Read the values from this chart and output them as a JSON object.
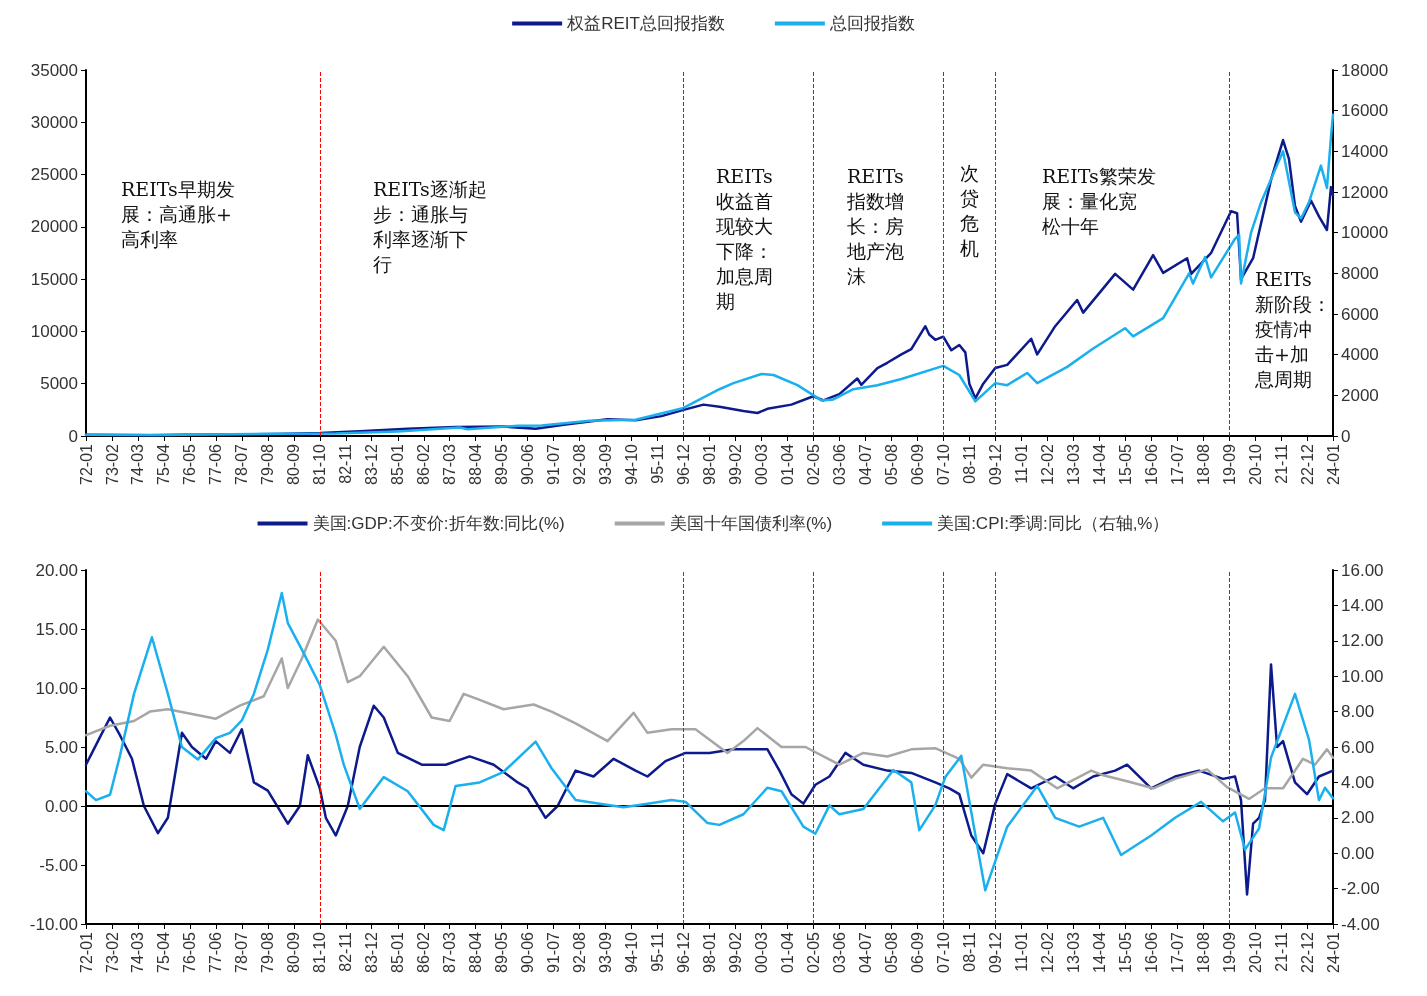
{
  "chart_data": [
    {
      "type": "line",
      "legend": "top",
      "grid": false,
      "marker": "none",
      "line_style": "solid",
      "xlim": [
        "1972-01",
        "2024-01"
      ],
      "xticks": [
        {
          "value": "1972-01",
          "label": "72-01"
        },
        {
          "value": "1973-02",
          "label": "73-02"
        },
        {
          "value": "1974-03",
          "label": "74-03"
        },
        {
          "value": "1975-04",
          "label": "75-04"
        },
        {
          "value": "1976-05",
          "label": "76-05"
        },
        {
          "value": "1977-06",
          "label": "77-06"
        },
        {
          "value": "1978-07",
          "label": "78-07"
        },
        {
          "value": "1979-08",
          "label": "79-08"
        },
        {
          "value": "1980-09",
          "label": "80-09"
        },
        {
          "value": "1981-10",
          "label": "81-10"
        },
        {
          "value": "1982-11",
          "label": "82-11"
        },
        {
          "value": "1983-12",
          "label": "83-12"
        },
        {
          "value": "1985-01",
          "label": "85-01"
        },
        {
          "value": "1986-02",
          "label": "86-02"
        },
        {
          "value": "1987-03",
          "label": "87-03"
        },
        {
          "value": "1988-04",
          "label": "88-04"
        },
        {
          "value": "1989-05",
          "label": "89-05"
        },
        {
          "value": "1990-06",
          "label": "90-06"
        },
        {
          "value": "1991-07",
          "label": "91-07"
        },
        {
          "value": "1992-08",
          "label": "92-08"
        },
        {
          "value": "1993-09",
          "label": "93-09"
        },
        {
          "value": "1994-10",
          "label": "94-10"
        },
        {
          "value": "1995-11",
          "label": "95-11"
        },
        {
          "value": "1996-12",
          "label": "96-12"
        },
        {
          "value": "1998-01",
          "label": "98-01"
        },
        {
          "value": "1999-02",
          "label": "99-02"
        },
        {
          "value": "2000-03",
          "label": "00-03"
        },
        {
          "value": "2001-04",
          "label": "01-04"
        },
        {
          "value": "2002-05",
          "label": "02-05"
        },
        {
          "value": "2003-06",
          "label": "03-06"
        },
        {
          "value": "2004-07",
          "label": "04-07"
        },
        {
          "value": "2005-08",
          "label": "05-08"
        },
        {
          "value": "2006-09",
          "label": "06-09"
        },
        {
          "value": "2007-10",
          "label": "07-10"
        },
        {
          "value": "2008-11",
          "label": "08-11"
        },
        {
          "value": "2009-12",
          "label": "09-12"
        },
        {
          "value": "2011-01",
          "label": "11-01"
        },
        {
          "value": "2012-02",
          "label": "12-02"
        },
        {
          "value": "2013-03",
          "label": "13-03"
        },
        {
          "value": "2014-04",
          "label": "14-04"
        },
        {
          "value": "2015-05",
          "label": "15-05"
        },
        {
          "value": "2016-06",
          "label": "16-06"
        },
        {
          "value": "2017-07",
          "label": "17-07"
        },
        {
          "value": "2018-08",
          "label": "18-08"
        },
        {
          "value": "2019-09",
          "label": "19-09"
        },
        {
          "value": "2020-10",
          "label": "20-10"
        },
        {
          "value": "2021-11",
          "label": "21-11"
        },
        {
          "value": "2022-12",
          "label": "22-12"
        },
        {
          "value": "2024-01",
          "label": "24-01"
        }
      ],
      "ylim": [
        0,
        35000
      ],
      "yticks": [
        0,
        5000,
        10000,
        15000,
        20000,
        25000,
        30000,
        35000
      ],
      "y2lim": [
        0,
        18000
      ],
      "y2ticks": [
        0,
        2000,
        4000,
        6000,
        8000,
        10000,
        12000,
        14000,
        16000,
        18000
      ],
      "ref_lines": [
        {
          "axis": "x",
          "value": "1981-10",
          "label": null,
          "color": "#ff0000",
          "line_style": "dashed"
        },
        {
          "axis": "x",
          "value": "1996-12",
          "label": null,
          "color": "#ff0000",
          "line_style": "dashed"
        },
        {
          "axis": "x",
          "value": "2002-05",
          "label": null,
          "color": "#ff0000",
          "line_style": "dashed"
        },
        {
          "axis": "x",
          "value": "2007-10",
          "label": null,
          "color": "#ff0000",
          "line_style": "dashed"
        },
        {
          "axis": "x",
          "value": "2009-12",
          "label": null,
          "color": "#ff0000",
          "line_style": "dashed"
        },
        {
          "axis": "x",
          "value": "2019-09",
          "label": null,
          "color": "#ff0000",
          "line_style": "dashed"
        }
      ],
      "annotations": [
        "REITs早期发展：高通胀+高利率",
        "REITs逐渐起步：通胀与利率逐渐下行",
        "REITs收益首现较大下降：加息周期",
        "REITs指数增长：房地产泡沫",
        "次贷危机",
        "REITs繁荣发展：量化宽松十年",
        "REITs新阶段：疫情冲击+加息周期"
      ],
      "series": [
        {
          "name": "权益REIT总回报指数",
          "color": "#0d1a8c",
          "x": [
            "1972-01",
            "1974-09",
            "1976-01",
            "1978-01",
            "1980-01",
            "1981-10",
            "1983-06",
            "1985-06",
            "1987-06",
            "1989-06",
            "1990-10",
            "1992-01",
            "1993-10",
            "1994-12",
            "1996-01",
            "1996-12",
            "1997-10",
            "1998-06",
            "1999-06",
            "2000-01",
            "2000-06",
            "2001-06",
            "2002-05",
            "2002-10",
            "2003-06",
            "2004-03",
            "2004-05",
            "2005-01",
            "2005-06",
            "2006-01",
            "2006-06",
            "2007-01",
            "2007-03",
            "2007-06",
            "2007-10",
            "2008-02",
            "2008-06",
            "2008-09",
            "2008-11",
            "2009-02",
            "2009-06",
            "2009-12",
            "2010-06",
            "2011-06",
            "2011-09",
            "2012-06",
            "2013-05",
            "2013-08",
            "2014-12",
            "2015-09",
            "2016-07",
            "2016-12",
            "2017-12",
            "2018-02",
            "2018-12",
            "2019-10",
            "2020-01",
            "2020-03",
            "2020-09",
            "2020-12",
            "2021-06",
            "2021-12",
            "2022-03",
            "2022-06",
            "2022-09",
            "2023-02",
            "2023-06",
            "2023-10",
            "2023-12",
            "2024-01"
          ],
          "values": [
            120,
            80,
            110,
            150,
            200,
            280,
            450,
            700,
            850,
            900,
            700,
            1100,
            1600,
            1500,
            1900,
            2500,
            3000,
            2800,
            2400,
            2200,
            2600,
            3000,
            3800,
            3400,
            4000,
            5500,
            4900,
            6500,
            7000,
            7800,
            8300,
            10500,
            9700,
            9200,
            9500,
            8200,
            8700,
            8000,
            5000,
            3600,
            5000,
            6500,
            6800,
            9300,
            7800,
            10500,
            13000,
            11800,
            15500,
            14000,
            17300,
            15600,
            17000,
            15500,
            17500,
            21500,
            21300,
            15000,
            17000,
            19500,
            24500,
            28300,
            26500,
            22000,
            20500,
            22500,
            21000,
            19700,
            23800,
            23000
          ]
        },
        {
          "name": "总回报指数",
          "color": "#1ab0ee",
          "axis": "y2",
          "x": [
            "1972-01",
            "1975-01",
            "1978-01",
            "1980-01",
            "1982-06",
            "1985-01",
            "1987-08",
            "1987-12",
            "1990-01",
            "1991-01",
            "1993-01",
            "1994-12",
            "1996-12",
            "1998-06",
            "1999-01",
            "2000-03",
            "2000-09",
            "2001-09",
            "2002-09",
            "2003-03",
            "2004-01",
            "2005-01",
            "2006-01",
            "2007-10",
            "2008-06",
            "2009-02",
            "2009-12",
            "2010-06",
            "2011-04",
            "2011-09",
            "2012-12",
            "2014-01",
            "2015-05",
            "2015-09",
            "2016-12",
            "2018-01",
            "2018-03",
            "2018-09",
            "2018-12",
            "2019-12",
            "2020-02",
            "2020-03",
            "2020-08",
            "2021-01",
            "2021-12",
            "2022-06",
            "2022-09",
            "2023-01",
            "2023-07",
            "2023-10",
            "2023-12",
            "2024-01"
          ],
          "values": [
            60,
            50,
            80,
            110,
            120,
            220,
            420,
            330,
            500,
            520,
            750,
            800,
            1380,
            2300,
            2600,
            3050,
            3000,
            2500,
            1750,
            1800,
            2300,
            2500,
            2800,
            3450,
            3000,
            1700,
            2600,
            2500,
            3100,
            2600,
            3400,
            4300,
            5300,
            4900,
            5800,
            8000,
            7500,
            8800,
            7800,
            9700,
            9900,
            7500,
            10000,
            11500,
            14000,
            11000,
            10700,
            11500,
            13300,
            12200,
            14700,
            15800
          ]
        }
      ]
    },
    {
      "type": "line",
      "legend": "top",
      "grid": false,
      "marker": "none",
      "line_style": "solid",
      "xlim": [
        "1972-01",
        "2024-01"
      ],
      "xticks": [
        {
          "value": "1972-01",
          "label": "72-01"
        },
        {
          "value": "1973-02",
          "label": "73-02"
        },
        {
          "value": "1974-03",
          "label": "74-03"
        },
        {
          "value": "1975-04",
          "label": "75-04"
        },
        {
          "value": "1976-05",
          "label": "76-05"
        },
        {
          "value": "1977-06",
          "label": "77-06"
        },
        {
          "value": "1978-07",
          "label": "78-07"
        },
        {
          "value": "1979-08",
          "label": "79-08"
        },
        {
          "value": "1980-09",
          "label": "80-09"
        },
        {
          "value": "1981-10",
          "label": "81-10"
        },
        {
          "value": "1982-11",
          "label": "82-11"
        },
        {
          "value": "1983-12",
          "label": "83-12"
        },
        {
          "value": "1985-01",
          "label": "85-01"
        },
        {
          "value": "1986-02",
          "label": "86-02"
        },
        {
          "value": "1987-03",
          "label": "87-03"
        },
        {
          "value": "1988-04",
          "label": "88-04"
        },
        {
          "value": "1989-05",
          "label": "89-05"
        },
        {
          "value": "1990-06",
          "label": "90-06"
        },
        {
          "value": "1991-07",
          "label": "91-07"
        },
        {
          "value": "1992-08",
          "label": "92-08"
        },
        {
          "value": "1993-09",
          "label": "93-09"
        },
        {
          "value": "1994-10",
          "label": "94-10"
        },
        {
          "value": "1995-11",
          "label": "95-11"
        },
        {
          "value": "1996-12",
          "label": "96-12"
        },
        {
          "value": "1998-01",
          "label": "98-01"
        },
        {
          "value": "1999-02",
          "label": "99-02"
        },
        {
          "value": "2000-03",
          "label": "00-03"
        },
        {
          "value": "2001-04",
          "label": "01-04"
        },
        {
          "value": "2002-05",
          "label": "02-05"
        },
        {
          "value": "2003-06",
          "label": "03-06"
        },
        {
          "value": "2004-07",
          "label": "04-07"
        },
        {
          "value": "2005-08",
          "label": "05-08"
        },
        {
          "value": "2006-09",
          "label": "06-09"
        },
        {
          "value": "2007-10",
          "label": "07-10"
        },
        {
          "value": "2008-11",
          "label": "08-11"
        },
        {
          "value": "2009-12",
          "label": "09-12"
        },
        {
          "value": "2011-01",
          "label": "11-01"
        },
        {
          "value": "2012-02",
          "label": "12-02"
        },
        {
          "value": "2013-03",
          "label": "13-03"
        },
        {
          "value": "2014-04",
          "label": "14-04"
        },
        {
          "value": "2015-05",
          "label": "15-05"
        },
        {
          "value": "2016-06",
          "label": "16-06"
        },
        {
          "value": "2017-07",
          "label": "17-07"
        },
        {
          "value": "2018-08",
          "label": "18-08"
        },
        {
          "value": "2019-09",
          "label": "19-09"
        },
        {
          "value": "2020-10",
          "label": "20-10"
        },
        {
          "value": "2021-11",
          "label": "21-11"
        },
        {
          "value": "2022-12",
          "label": "22-12"
        },
        {
          "value": "2024-01",
          "label": "24-01"
        }
      ],
      "ylim": [
        -10,
        20
      ],
      "yticks": [
        {
          "value": -10,
          "label": "-10.00"
        },
        {
          "value": -5,
          "label": "-5.00"
        },
        {
          "value": 0,
          "label": "0.00"
        },
        {
          "value": 5,
          "label": "5.00"
        },
        {
          "value": 10,
          "label": "10.00"
        },
        {
          "value": 15,
          "label": "15.00"
        },
        {
          "value": 20,
          "label": "20.00"
        }
      ],
      "y2lim": [
        -4,
        16
      ],
      "y2ticks": [
        {
          "value": -4,
          "label": "-4.00"
        },
        {
          "value": -2,
          "label": "-2.00"
        },
        {
          "value": 0,
          "label": "0.00"
        },
        {
          "value": 2,
          "label": "2.00"
        },
        {
          "value": 4,
          "label": "4.00"
        },
        {
          "value": 6,
          "label": "6.00"
        },
        {
          "value": 8,
          "label": "8.00"
        },
        {
          "value": 10,
          "label": "10.00"
        },
        {
          "value": 12,
          "label": "12.00"
        },
        {
          "value": 14,
          "label": "14.00"
        },
        {
          "value": 16,
          "label": "16.00"
        }
      ],
      "ref_lines": [
        {
          "axis": "y",
          "value": 0,
          "label": null,
          "color": "#000000",
          "line_style": "solid"
        },
        {
          "axis": "x",
          "value": "1981-10",
          "label": null,
          "color": "#ff0000",
          "line_style": "dashed"
        },
        {
          "axis": "x",
          "value": "1996-12",
          "label": null,
          "color": "#ff0000",
          "line_style": "dashed"
        },
        {
          "axis": "x",
          "value": "2002-05",
          "label": null,
          "color": "#ff0000",
          "line_style": "dashed"
        },
        {
          "axis": "x",
          "value": "2007-10",
          "label": null,
          "color": "#ff0000",
          "line_style": "dashed"
        },
        {
          "axis": "x",
          "value": "2009-12",
          "label": null,
          "color": "#ff0000",
          "line_style": "dashed"
        },
        {
          "axis": "x",
          "value": "2019-09",
          "label": null,
          "color": "#ff0000",
          "line_style": "dashed"
        }
      ],
      "series": [
        {
          "name": "美国:GDP:不变价:折年数:同比(%)",
          "color": "#0d1a8c",
          "x": [
            "1972-01",
            "1972-07",
            "1973-01",
            "1973-06",
            "1973-12",
            "1974-06",
            "1975-01",
            "1975-06",
            "1976-01",
            "1976-06",
            "1977-01",
            "1977-06",
            "1978-01",
            "1978-07",
            "1979-01",
            "1979-08",
            "1980-06",
            "1980-12",
            "1981-04",
            "1981-10",
            "1982-01",
            "1982-06",
            "1982-12",
            "1983-06",
            "1984-01",
            "1984-06",
            "1985-01",
            "1986-01",
            "1987-01",
            "1988-01",
            "1989-01",
            "1990-01",
            "1990-06",
            "1991-03",
            "1991-09",
            "1992-06",
            "1993-03",
            "1994-01",
            "1994-12",
            "1995-06",
            "1996-03",
            "1997-01",
            "1998-01",
            "1999-01",
            "2000-06",
            "2000-12",
            "2001-06",
            "2001-12",
            "2002-06",
            "2003-01",
            "2003-09",
            "2004-06",
            "2005-06",
            "2006-06",
            "2007-06",
            "2008-01",
            "2008-06",
            "2008-12",
            "2009-06",
            "2009-12",
            "2010-06",
            "2011-06",
            "2012-06",
            "2013-03",
            "2014-01",
            "2014-12",
            "2015-06",
            "2016-06",
            "2017-06",
            "2018-06",
            "2019-06",
            "2019-12",
            "2020-03",
            "2020-06",
            "2020-09",
            "2020-12",
            "2021-03",
            "2021-06",
            "2021-09",
            "2021-12",
            "2022-06",
            "2022-12",
            "2023-06",
            "2024-01"
          ],
          "values": [
            3.5,
            5.5,
            7.5,
            6,
            4,
            0,
            -2.3,
            -1,
            6.2,
            5,
            4,
            5.5,
            4.5,
            6.5,
            2,
            1.3,
            -1.5,
            0,
            4.3,
            1.5,
            -1,
            -2.5,
            0,
            5,
            8.5,
            7.5,
            4.5,
            3.5,
            3.5,
            4.2,
            3.5,
            2,
            1.5,
            -1,
            0,
            3,
            2.5,
            4,
            3,
            2.5,
            3.8,
            4.5,
            4.5,
            4.8,
            4.8,
            3,
            1,
            0.2,
            1.8,
            2.5,
            4.5,
            3.5,
            3,
            2.8,
            2,
            1.5,
            1,
            -2.5,
            -4,
            0.2,
            2.7,
            1.5,
            2.5,
            1.5,
            2.5,
            3,
            3.5,
            1.5,
            2.5,
            3,
            2.3,
            2.5,
            0.5,
            -7.5,
            -1.5,
            -1,
            0.5,
            12,
            5,
            5.5,
            2,
            1,
            2.5,
            3
          ]
        },
        {
          "name": "美国十年国债利率(%)",
          "color": "#a6a6a6",
          "x": [
            "1972-01",
            "1973-01",
            "1974-01",
            "1974-09",
            "1975-06",
            "1976-06",
            "1977-06",
            "1978-06",
            "1979-06",
            "1980-03",
            "1980-06",
            "1981-01",
            "1981-09",
            "1982-06",
            "1982-12",
            "1983-06",
            "1984-06",
            "1985-06",
            "1986-06",
            "1987-03",
            "1987-10",
            "1988-06",
            "1989-06",
            "1990-09",
            "1991-06",
            "1992-06",
            "1993-10",
            "1994-11",
            "1995-06",
            "1996-06",
            "1997-06",
            "1998-10",
            "1999-06",
            "2000-01",
            "2001-01",
            "2002-01",
            "2003-06",
            "2004-06",
            "2005-06",
            "2006-06",
            "2007-06",
            "2008-06",
            "2008-12",
            "2009-06",
            "2010-06",
            "2011-06",
            "2012-07",
            "2013-12",
            "2014-06",
            "2015-06",
            "2016-07",
            "2017-06",
            "2018-10",
            "2019-08",
            "2020-07",
            "2021-03",
            "2021-12",
            "2022-10",
            "2023-04",
            "2023-10",
            "2024-01"
          ],
          "values": [
            6,
            6.8,
            7.2,
            8,
            8.2,
            7.8,
            7.4,
            8.5,
            9.3,
            12.5,
            10,
            12.5,
            15.8,
            14,
            10.5,
            11,
            13.5,
            11,
            7.5,
            7.2,
            9.5,
            9,
            8.2,
            8.6,
            8,
            7,
            5.5,
            7.9,
            6.2,
            6.5,
            6.5,
            4.5,
            5.5,
            6.6,
            5,
            5,
            3.5,
            4.5,
            4.2,
            4.8,
            4.9,
            4,
            2.4,
            3.5,
            3.2,
            3,
            1.5,
            3,
            2.6,
            2.1,
            1.5,
            2.3,
            3.1,
            1.6,
            0.6,
            1.5,
            1.5,
            4,
            3.5,
            4.8,
            4.1
          ]
        },
        {
          "name": "美国:CPI:季调:同比（右轴,%）",
          "color": "#1ab0ee",
          "axis": "y2",
          "x": [
            "1972-01",
            "1972-06",
            "1973-01",
            "1973-06",
            "1974-01",
            "1974-10",
            "1975-06",
            "1976-01",
            "1976-09",
            "1977-06",
            "1978-01",
            "1978-07",
            "1979-01",
            "1979-08",
            "1980-03",
            "1980-06",
            "1981-01",
            "1981-10",
            "1982-06",
            "1982-10",
            "1983-06",
            "1984-06",
            "1985-06",
            "1986-07",
            "1986-12",
            "1987-06",
            "1988-06",
            "1989-06",
            "1990-10",
            "1991-06",
            "1992-06",
            "1993-06",
            "1994-06",
            "1995-06",
            "1996-06",
            "1997-01",
            "1997-12",
            "1998-06",
            "1999-06",
            "2000-06",
            "2001-01",
            "2001-12",
            "2002-06",
            "2003-01",
            "2003-06",
            "2004-06",
            "2005-09",
            "2006-06",
            "2006-10",
            "2007-06",
            "2007-11",
            "2008-07",
            "2009-07",
            "2010-06",
            "2011-09",
            "2012-06",
            "2013-06",
            "2014-06",
            "2015-03",
            "2016-06",
            "2017-06",
            "2018-07",
            "2019-06",
            "2019-12",
            "2020-05",
            "2020-12",
            "2021-06",
            "2022-06",
            "2023-01",
            "2023-06",
            "2023-09",
            "2024-01"
          ],
          "values": [
            3.5,
            3,
            3.3,
            5.5,
            9,
            12.2,
            9,
            6,
            5.3,
            6.5,
            6.8,
            7.5,
            9,
            11.5,
            14.7,
            13,
            11.5,
            9.5,
            6.7,
            5,
            2.5,
            4.3,
            3.5,
            1.6,
            1.3,
            3.8,
            4,
            4.6,
            6.3,
            4.8,
            3,
            2.8,
            2.6,
            2.8,
            3,
            2.9,
            1.7,
            1.6,
            2.2,
            3.7,
            3.5,
            1.5,
            1.1,
            2.7,
            2.2,
            2.5,
            4.7,
            4,
            1.3,
            2.7,
            4.3,
            5.5,
            -2.1,
            1.5,
            3.8,
            2,
            1.5,
            2,
            -0.1,
            1,
            2,
            2.9,
            1.8,
            2.3,
            0.2,
            1.4,
            5.4,
            9,
            6.4,
            3,
            3.7,
            3.1
          ]
        }
      ]
    }
  ]
}
